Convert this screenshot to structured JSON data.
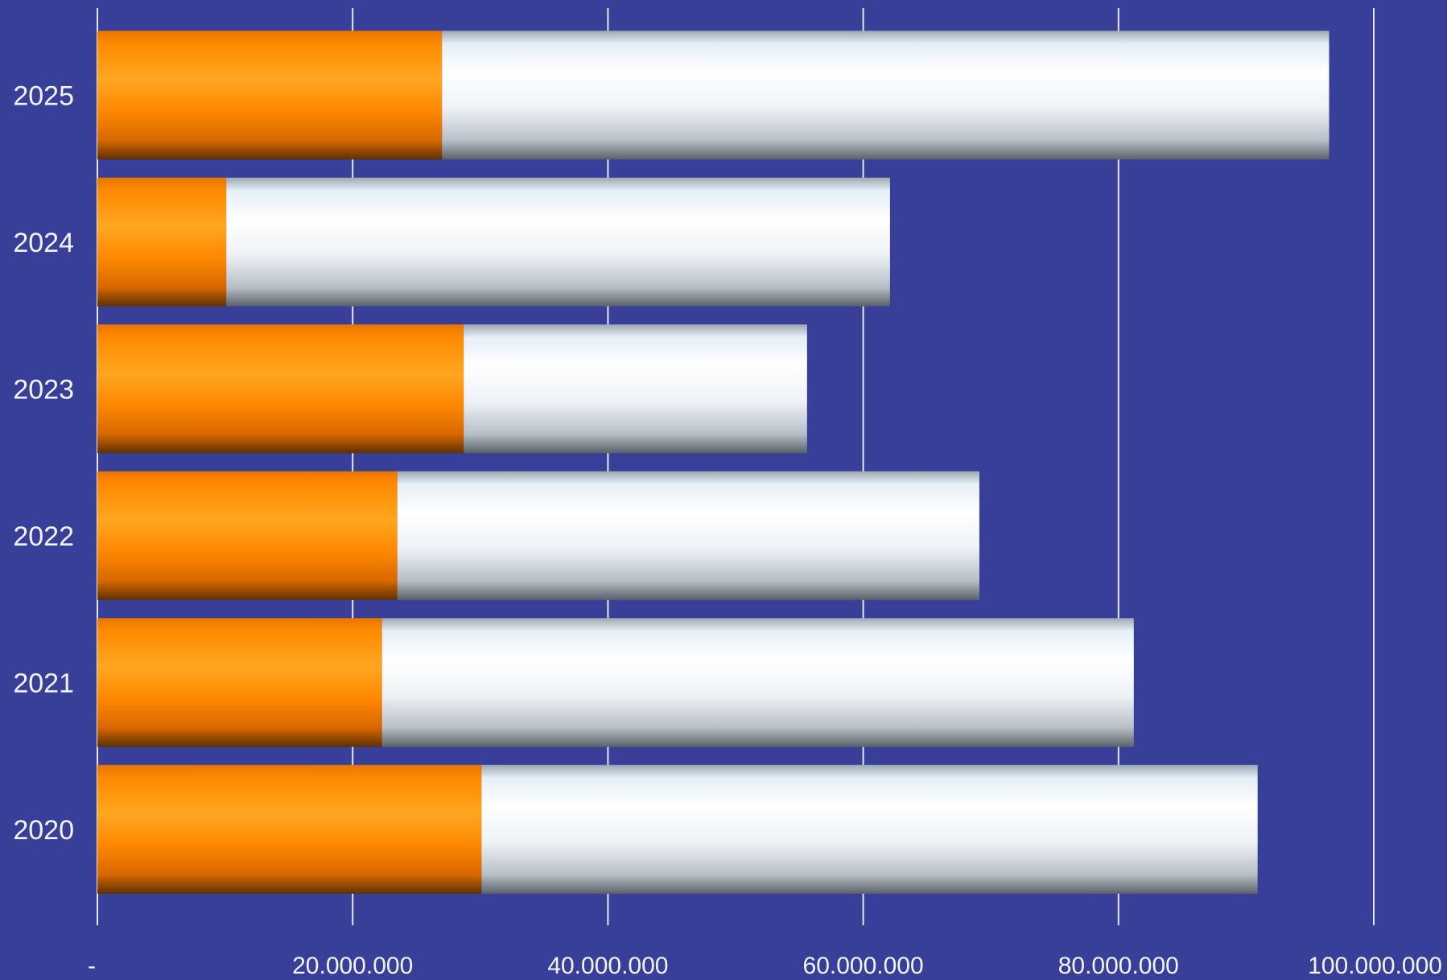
{
  "chart_data": {
    "type": "bar",
    "orientation": "horizontal",
    "stacked": true,
    "categories": [
      "2020",
      "2021",
      "2022",
      "2023",
      "2024",
      "2025"
    ],
    "series": [
      {
        "values": [
          30100000,
          22300000,
          23500000,
          28700000,
          10100000,
          27000000
        ],
        "color": "#FF8C00"
      },
      {
        "values": [
          60800000,
          58900000,
          45600000,
          26900000,
          52000000,
          69500000
        ],
        "color": "#F4F8FC"
      }
    ],
    "xlim": [
      0,
      100000000
    ],
    "xticks": [
      0,
      20000000,
      40000000,
      60000000,
      80000000,
      100000000
    ],
    "xtick_labels": [
      "-",
      "20.000.000",
      "40.000.000",
      "60.000.000",
      "80.000.000",
      "100.000.000"
    ],
    "title": "",
    "xlabel": "",
    "ylabel": "",
    "grid": "vertical",
    "legend": "none",
    "colors": {
      "background": "#373F98",
      "gridline": "#E4E7F2",
      "text": "#F2F4FA"
    }
  }
}
